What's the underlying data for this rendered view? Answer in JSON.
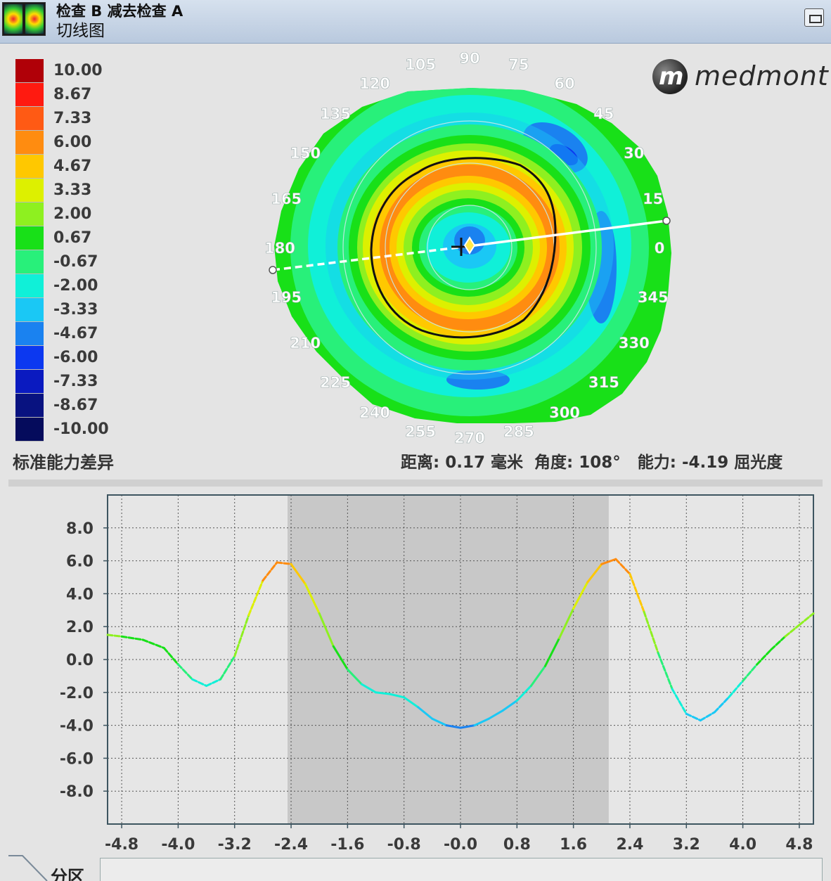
{
  "window": {
    "title": "检查 B 减去检查 A",
    "subtitle": "切线图"
  },
  "legend": {
    "items": [
      {
        "label": "10.00",
        "color": "#b00008"
      },
      {
        "label": "8.67",
        "color": "#ff1a10"
      },
      {
        "label": "7.33",
        "color": "#ff5a14"
      },
      {
        "label": "6.00",
        "color": "#ff8c10"
      },
      {
        "label": "4.67",
        "color": "#ffc800"
      },
      {
        "label": "3.33",
        "color": "#ddf000"
      },
      {
        "label": "2.00",
        "color": "#8ef020"
      },
      {
        "label": "0.67",
        "color": "#18e018"
      },
      {
        "label": "-0.67",
        "color": "#28f07a"
      },
      {
        "label": "-2.00",
        "color": "#10f0d8"
      },
      {
        "label": "-3.33",
        "color": "#1ac8f5"
      },
      {
        "label": "-4.67",
        "color": "#1a82f0"
      },
      {
        "label": "-6.00",
        "color": "#0c38f0"
      },
      {
        "label": "-7.33",
        "color": "#0a1ac0"
      },
      {
        "label": "-8.67",
        "color": "#081280"
      },
      {
        "label": "-10.00",
        "color": "#050b5c"
      }
    ],
    "caption": "标准能力差异"
  },
  "logo": {
    "mark": "m",
    "text": "medmont"
  },
  "map": {
    "angle_labels": [
      "0",
      "15",
      "30",
      "45",
      "60",
      "75",
      "90",
      "105",
      "120",
      "135",
      "150",
      "165",
      "180",
      "195",
      "210",
      "225",
      "240",
      "255",
      "270",
      "285",
      "300",
      "315",
      "330",
      "345"
    ]
  },
  "readout": {
    "distance_label": "距离:",
    "distance_value": "0.17",
    "distance_unit": "毫米",
    "angle_label": "角度:",
    "angle_value": "108°",
    "power_label": "能力:",
    "power_value": "-4.19",
    "power_unit": "屈光度"
  },
  "tab": {
    "label": "分区"
  },
  "chart_data": {
    "type": "line",
    "xlim": [
      -5.0,
      5.0
    ],
    "ylim": [
      -10.0,
      10.0
    ],
    "x_ticks": [
      "-4.8",
      "-4.0",
      "-3.2",
      "-2.4",
      "-1.6",
      "-0.8",
      "-0.0",
      "0.8",
      "1.6",
      "2.4",
      "3.2",
      "4.0",
      "4.8"
    ],
    "y_ticks": [
      "8.0",
      "6.0",
      "4.0",
      "2.0",
      "0.0",
      "-2.0",
      "-4.0",
      "-6.0",
      "-8.0"
    ],
    "grid": true,
    "shaded_region": [
      -2.45,
      2.1
    ],
    "series": [
      {
        "points": [
          [
            -5.0,
            1.5
          ],
          [
            -4.8,
            1.4
          ],
          [
            -4.5,
            1.2
          ],
          [
            -4.2,
            0.7
          ],
          [
            -4.0,
            -0.3
          ],
          [
            -3.8,
            -1.2
          ],
          [
            -3.6,
            -1.6
          ],
          [
            -3.4,
            -1.2
          ],
          [
            -3.2,
            0.2
          ],
          [
            -3.0,
            2.7
          ],
          [
            -2.8,
            4.8
          ],
          [
            -2.6,
            5.9
          ],
          [
            -2.4,
            5.8
          ],
          [
            -2.2,
            4.6
          ],
          [
            -2.0,
            2.8
          ],
          [
            -1.8,
            0.8
          ],
          [
            -1.6,
            -0.6
          ],
          [
            -1.4,
            -1.5
          ],
          [
            -1.2,
            -2.0
          ],
          [
            -1.0,
            -2.1
          ],
          [
            -0.8,
            -2.3
          ],
          [
            -0.6,
            -2.9
          ],
          [
            -0.4,
            -3.6
          ],
          [
            -0.2,
            -4.0
          ],
          [
            0.0,
            -4.15
          ],
          [
            0.2,
            -4.0
          ],
          [
            0.4,
            -3.6
          ],
          [
            0.6,
            -3.1
          ],
          [
            0.8,
            -2.5
          ],
          [
            1.0,
            -1.6
          ],
          [
            1.2,
            -0.4
          ],
          [
            1.4,
            1.3
          ],
          [
            1.6,
            3.1
          ],
          [
            1.8,
            4.7
          ],
          [
            2.0,
            5.8
          ],
          [
            2.2,
            6.1
          ],
          [
            2.4,
            5.2
          ],
          [
            2.6,
            2.9
          ],
          [
            2.8,
            0.4
          ],
          [
            3.0,
            -1.8
          ],
          [
            3.2,
            -3.3
          ],
          [
            3.4,
            -3.7
          ],
          [
            3.6,
            -3.2
          ],
          [
            3.8,
            -2.3
          ],
          [
            4.0,
            -1.3
          ],
          [
            4.2,
            -0.3
          ],
          [
            4.4,
            0.6
          ],
          [
            4.6,
            1.4
          ],
          [
            4.8,
            2.1
          ],
          [
            5.0,
            2.8
          ]
        ]
      }
    ]
  }
}
